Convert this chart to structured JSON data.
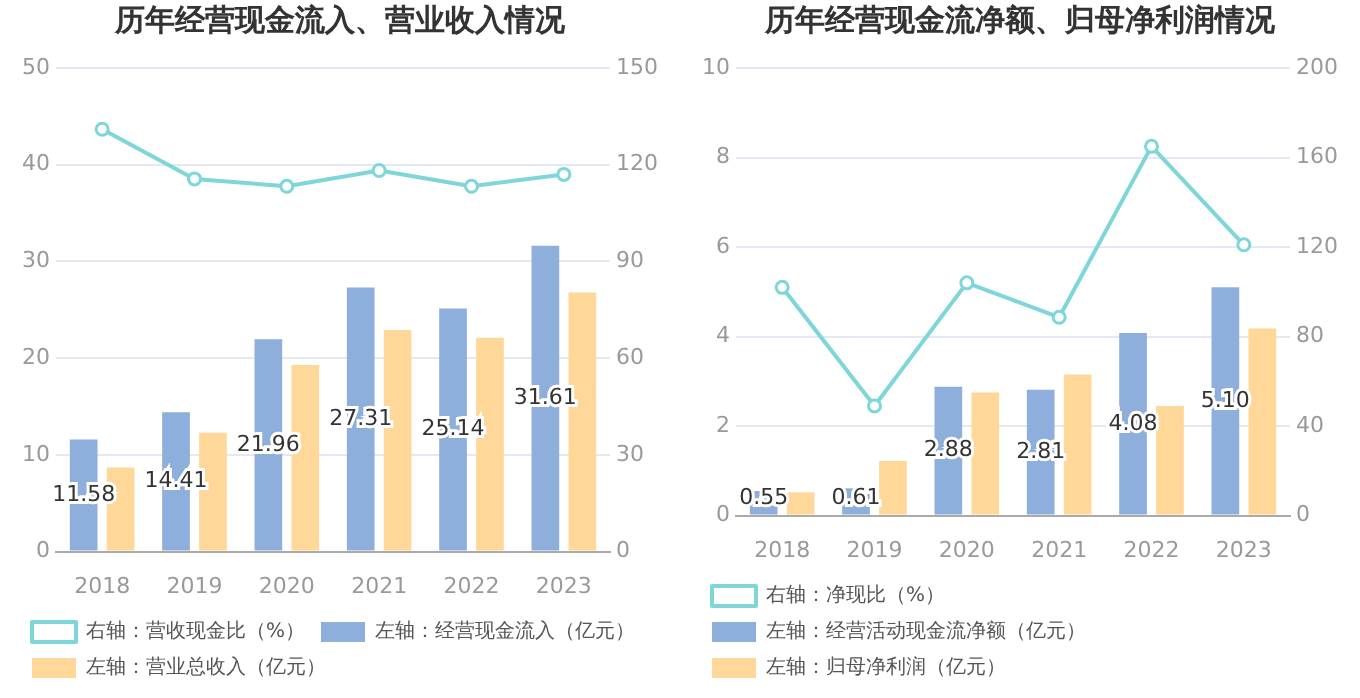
{
  "chart_data": [
    {
      "type": "bar",
      "title": "历年经营现金流入、营业收入情况",
      "categories": [
        "2018",
        "2019",
        "2020",
        "2021",
        "2022",
        "2023"
      ],
      "series": [
        {
          "name": "左轴：经营现金流入（亿元）",
          "color": "#8eaedb",
          "values": [
            11.58,
            14.41,
            21.96,
            27.31,
            25.14,
            31.61
          ],
          "value_labels": [
            "11.58",
            "14.41",
            "21.96",
            "27.31",
            "25.14",
            "31.61"
          ]
        },
        {
          "name": "左轴：营业总收入（亿元）",
          "color": "#ffd899",
          "values": [
            8.7,
            12.3,
            19.3,
            22.9,
            22.1,
            26.8
          ]
        },
        {
          "name": "右轴：营收现金比（%）",
          "color": "#7fd6d9",
          "type": "line",
          "axis": "y2",
          "values": [
            131,
            115.6,
            113.3,
            118.2,
            113.3,
            117
          ]
        }
      ],
      "ylim": [
        0,
        50
      ],
      "yticks": [
        0,
        10,
        20,
        30,
        40,
        50
      ],
      "y2lim": [
        0,
        150
      ],
      "y2ticks": [
        0,
        30,
        60,
        90,
        120,
        150
      ],
      "grid": "y",
      "legend": "bottom",
      "marker": "circle"
    },
    {
      "type": "bar",
      "title": "历年经营现金流净额、归母净利润情况",
      "categories": [
        "2018",
        "2019",
        "2020",
        "2021",
        "2022",
        "2023"
      ],
      "series": [
        {
          "name": "左轴：经营活动现金流净额（亿元）",
          "color": "#8eaedb",
          "values": [
            0.55,
            0.61,
            2.88,
            2.81,
            4.08,
            5.1
          ],
          "value_labels": [
            "0.55",
            "0.61",
            "2.88",
            "2.81",
            "4.08",
            "5.10"
          ]
        },
        {
          "name": "左轴：归母净利润（亿元）",
          "color": "#ffd899",
          "values": [
            0.52,
            1.22,
            2.75,
            3.15,
            2.45,
            4.18
          ]
        },
        {
          "name": "右轴：净现比（%）",
          "color": "#7fd6d9",
          "type": "line",
          "axis": "y2",
          "values": [
            102,
            49,
            104,
            88.6,
            165,
            121
          ]
        }
      ],
      "ylim": [
        0,
        10
      ],
      "yticks": [
        0,
        2,
        4,
        6,
        8,
        10
      ],
      "y2lim": [
        0,
        200
      ],
      "y2ticks": [
        0,
        40,
        80,
        120,
        160,
        200
      ],
      "grid": "y",
      "legend": "bottom",
      "marker": "circle"
    }
  ]
}
